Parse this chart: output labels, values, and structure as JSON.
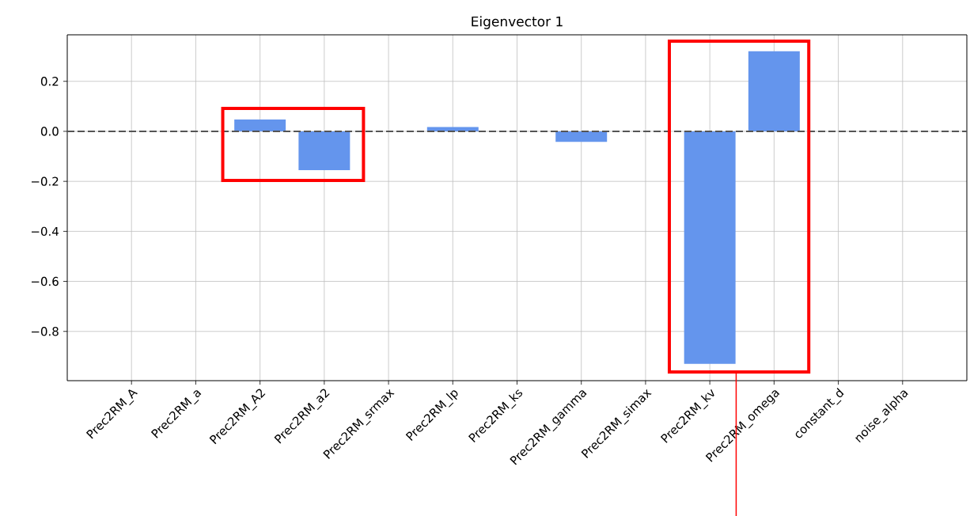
{
  "chart_data": {
    "type": "bar",
    "title": "Eigenvector 1",
    "categories": [
      "Prec2RM_A",
      "Prec2RM_a",
      "Prec2RM_A2",
      "Prec2RM_a2",
      "Prec2RM_srmax",
      "Prec2RM_lp",
      "Prec2RM_ks",
      "Prec2RM_gamma",
      "Prec2RM_simax",
      "Prec2RM_kv",
      "Prec2RM_omega",
      "constant_d",
      "noise_alpha"
    ],
    "values": [
      null,
      null,
      0.047,
      -0.155,
      null,
      0.017,
      null,
      -0.042,
      null,
      -0.93,
      0.32,
      0,
      0
    ],
    "color": "#6495ed",
    "ylim": [
      -0.997,
      0.386
    ],
    "yticks": [
      {
        "value": -0.8,
        "label": "−0.8"
      },
      {
        "value": -0.6,
        "label": "−0.6"
      },
      {
        "value": -0.4,
        "label": "−0.4"
      },
      {
        "value": -0.2,
        "label": "−0.2"
      },
      {
        "value": 0,
        "label": "0.0"
      },
      {
        "value": 0.2,
        "label": "0.2"
      }
    ],
    "grid": true,
    "ref_lines": [
      {
        "axis": "y",
        "value": 0,
        "color": "#555555",
        "line_style": "dashed"
      }
    ]
  }
}
